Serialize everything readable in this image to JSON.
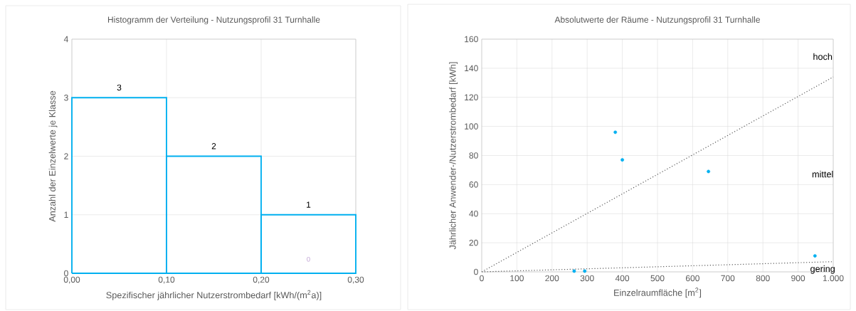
{
  "chart_data": [
    {
      "type": "histogram",
      "title": "Histogramm der Verteilung - Nutzungsprofil 31 Turnhalle",
      "xlabel": "Spezifischer jährlicher Nutzerstrombedarf [kWh/(m$^{2}$a)]",
      "ylabel": "Anzahl der Einzelwerte je Klasse",
      "bins": [
        0,
        0.1,
        0.2,
        0.3
      ],
      "values": [
        3,
        2,
        1
      ],
      "color": "#00b0f0",
      "data_labels": true,
      "xlim": [
        0,
        0.3
      ],
      "ylim": [
        0,
        4
      ],
      "xticks": [
        {
          "value": 0,
          "label": "0,00"
        },
        {
          "value": 0.1,
          "label": "0,10"
        },
        {
          "value": 0.2,
          "label": "0,20"
        },
        {
          "value": 0.3,
          "label": "0,30"
        }
      ],
      "yticks": [
        0,
        1,
        2,
        3,
        4
      ],
      "grid": true,
      "annotations": [
        "0"
      ]
    },
    {
      "type": "scatter",
      "title": "Absolutwerte der Räume - Nutzungsprofil 31 Turnhalle",
      "xlabel": "Einzelraumfläche [m$^{2}$]",
      "ylabel": "Jährlicher Anwender-/Nutzerstrombedarf [kWh]",
      "series": [
        {
          "type": "scatter",
          "color": "#00b0f0",
          "marker": "circle",
          "x": [
            380,
            400,
            645,
            948,
            263,
            293
          ],
          "values": [
            96,
            77,
            69,
            11,
            0.5,
            0.5
          ]
        },
        {
          "type": "line",
          "color": "#595959",
          "line_style": "dotted",
          "x": [
            0,
            1000
          ],
          "values": [
            0,
            134
          ]
        },
        {
          "type": "line",
          "color": "#595959",
          "line_style": "dotted",
          "x": [
            0,
            1000
          ],
          "values": [
            0,
            7
          ]
        }
      ],
      "xlim": [
        0,
        1000
      ],
      "ylim": [
        0,
        160
      ],
      "xticks": [
        0,
        100,
        200,
        300,
        400,
        500,
        600,
        700,
        800,
        900,
        {
          "value": 1000,
          "label": "1.000"
        }
      ],
      "yticks": [
        0,
        20,
        40,
        60,
        80,
        100,
        120,
        140,
        160
      ],
      "grid": true,
      "annotations": [
        "hoch",
        "mittel",
        "gering"
      ]
    }
  ]
}
